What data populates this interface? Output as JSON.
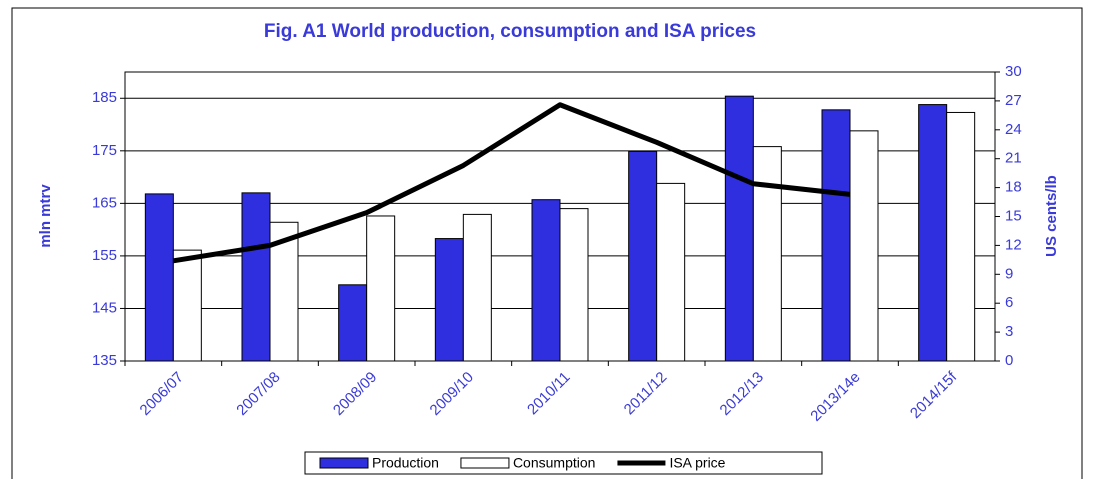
{
  "chart_data": {
    "type": "bar",
    "title": "Fig. A1   World production, consumption and ISA prices",
    "ylabel": "mln mtrv",
    "y2label": "US cents/lb",
    "categories": [
      "2006/07",
      "2007/08",
      "2008/09",
      "2009/10",
      "2010/11",
      "2011/12",
      "2012/13",
      "2013/14e",
      "2014/15f"
    ],
    "series": [
      {
        "name": "Production",
        "type": "bar",
        "color": "#2f2fe0",
        "values": [
          166.8,
          167.0,
          149.5,
          158.3,
          165.7,
          174.9,
          185.4,
          182.8,
          183.8
        ]
      },
      {
        "name": "Consumption",
        "type": "bar",
        "color": "#ffffff",
        "values": [
          156.1,
          161.4,
          162.6,
          162.9,
          164.0,
          168.8,
          175.8,
          178.8,
          182.3
        ]
      },
      {
        "name": "ISA price",
        "type": "line",
        "axis": "y2",
        "color": "#000000",
        "values": [
          10.4,
          12.0,
          15.4,
          20.3,
          26.6,
          22.7,
          18.4,
          17.3,
          null
        ]
      }
    ],
    "ylim": [
      135,
      190
    ],
    "yticks": [
      135,
      145,
      155,
      165,
      175,
      185
    ],
    "y2lim": [
      0,
      30
    ],
    "y2ticks": [
      0,
      3,
      6,
      9,
      12,
      15,
      18,
      21,
      24,
      27,
      30
    ],
    "grid": true,
    "legend": "bottom"
  }
}
